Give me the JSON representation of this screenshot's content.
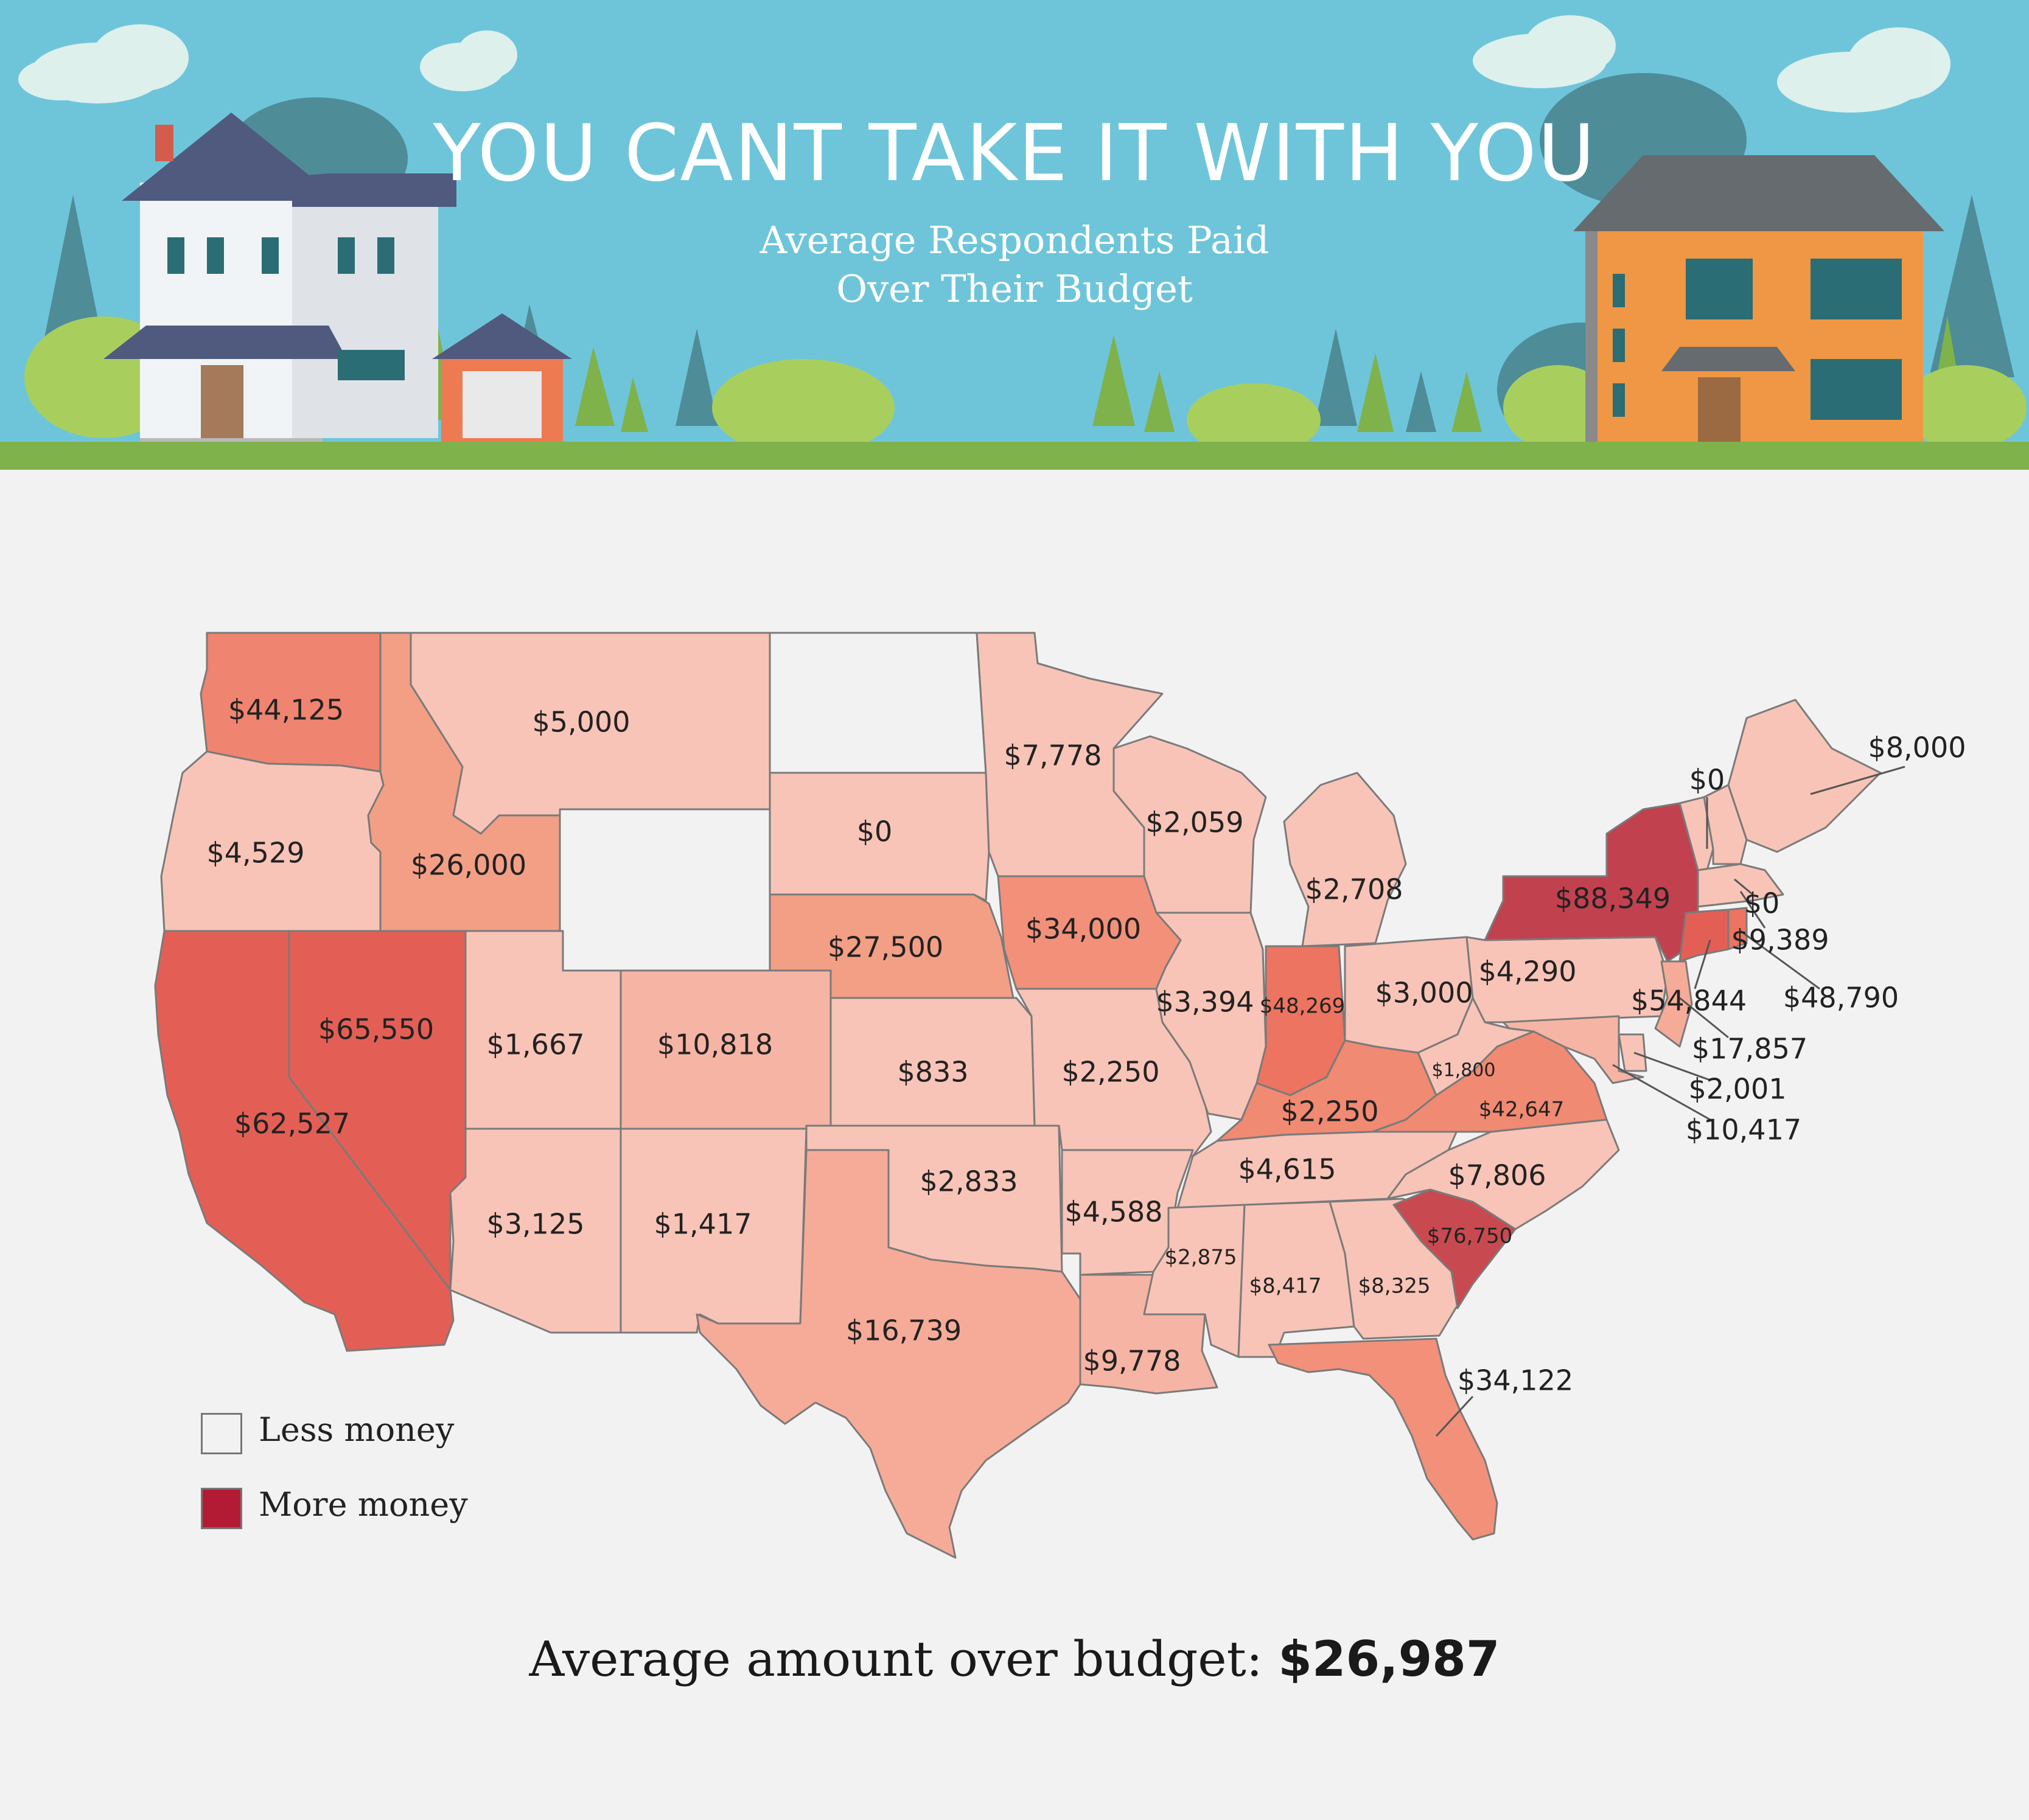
{
  "header": {
    "title": "YOU CANT TAKE IT WITH YOU",
    "subtitle_line1": "Average Respondents Paid",
    "subtitle_line2": "Over Their Budget"
  },
  "legend": {
    "less_label": "Less money",
    "more_label": "More money",
    "less_color": "#f2f2f2",
    "more_color": "#b31b35"
  },
  "footer": {
    "prefix": "Average amount over budget: ",
    "value": "$26,987"
  },
  "map_data": {
    "states": [
      {
        "code": "WA",
        "label": "$44,125",
        "value": 44125,
        "color": "#ef8470"
      },
      {
        "code": "OR",
        "label": "$4,529",
        "value": 4529,
        "color": "#f8c4b7"
      },
      {
        "code": "CA",
        "label": "$62,527",
        "value": 62527,
        "color": "#e35f55"
      },
      {
        "code": "NV",
        "label": "$65,550",
        "value": 65550,
        "color": "#e35f55"
      },
      {
        "code": "ID",
        "label": "$26,000",
        "value": 26000,
        "color": "#f29f86"
      },
      {
        "code": "MT",
        "label": "$5,000",
        "value": 5000,
        "color": "#f8c4b7"
      },
      {
        "code": "WY",
        "label": "",
        "value": null,
        "color": "#f2f2f2"
      },
      {
        "code": "UT",
        "label": "$1,667",
        "value": 1667,
        "color": "#f8c4b7"
      },
      {
        "code": "CO",
        "label": "$10,818",
        "value": 10818,
        "color": "#f6b4a5"
      },
      {
        "code": "AZ",
        "label": "$3,125",
        "value": 3125,
        "color": "#f8c4b7"
      },
      {
        "code": "NM",
        "label": "$1,417",
        "value": 1417,
        "color": "#f8c4b7"
      },
      {
        "code": "ND",
        "label": "",
        "value": null,
        "color": "#f2f2f2"
      },
      {
        "code": "SD",
        "label": "$0",
        "value": 0,
        "color": "#f8c4b7"
      },
      {
        "code": "NE",
        "label": "$27,500",
        "value": 27500,
        "color": "#f29f86"
      },
      {
        "code": "KS",
        "label": "$833",
        "value": 833,
        "color": "#f8c4b7"
      },
      {
        "code": "OK",
        "label": "$2,833",
        "value": 2833,
        "color": "#f8c4b7"
      },
      {
        "code": "TX",
        "label": "$16,739",
        "value": 16739,
        "color": "#f6ab98"
      },
      {
        "code": "MN",
        "label": "$7,778",
        "value": 7778,
        "color": "#f8c4b7"
      },
      {
        "code": "IA",
        "label": "$34,000",
        "value": 34000,
        "color": "#f2907a"
      },
      {
        "code": "MO",
        "label": "$2,250",
        "value": 2250,
        "color": "#f8c4b7"
      },
      {
        "code": "AR",
        "label": "$4,588",
        "value": 4588,
        "color": "#f8c4b7"
      },
      {
        "code": "LA",
        "label": "$9,778",
        "value": 9778,
        "color": "#f6b4a5"
      },
      {
        "code": "WI",
        "label": "$2,059",
        "value": 2059,
        "color": "#f8c4b7"
      },
      {
        "code": "IL",
        "label": "$3,394",
        "value": 3394,
        "color": "#f8c4b7"
      },
      {
        "code": "MI",
        "label": "$2,708",
        "value": 2708,
        "color": "#f8c4b7"
      },
      {
        "code": "IN",
        "label": "$48,269",
        "value": 48269,
        "color": "#ec7460"
      },
      {
        "code": "OH",
        "label": "$3,000",
        "value": 3000,
        "color": "#f8c4b7"
      },
      {
        "code": "KY",
        "label": "$2,250",
        "value": 2250,
        "color": "#f08a72"
      },
      {
        "code": "TN",
        "label": "$4,615",
        "value": 4615,
        "color": "#f8c4b7"
      },
      {
        "code": "MS",
        "label": "$2,875",
        "value": 2875,
        "color": "#f8c4b7"
      },
      {
        "code": "AL",
        "label": "$8,417",
        "value": 8417,
        "color": "#f8c4b7"
      },
      {
        "code": "GA",
        "label": "$8,325",
        "value": 8325,
        "color": "#f8c4b7"
      },
      {
        "code": "FL",
        "label": "$34,122",
        "value": 34122,
        "color": "#f2907a"
      },
      {
        "code": "SC",
        "label": "$76,750",
        "value": 76750,
        "color": "#c84a50"
      },
      {
        "code": "NC",
        "label": "$7,806",
        "value": 7806,
        "color": "#f8c4b7"
      },
      {
        "code": "VA",
        "label": "$42,647",
        "value": 42647,
        "color": "#f08a72"
      },
      {
        "code": "WV",
        "label": "$1,800",
        "value": 1800,
        "color": "#f8c4b7"
      },
      {
        "code": "PA",
        "label": "$4,290",
        "value": 4290,
        "color": "#f8c4b7"
      },
      {
        "code": "NY",
        "label": "$88,349",
        "value": 88349,
        "color": "#c2414f"
      },
      {
        "code": "VT",
        "label": "$0",
        "value": 0,
        "color": "#f8c4b7"
      },
      {
        "code": "NH",
        "label": "$0",
        "value": 0,
        "color": "#f8c4b7"
      },
      {
        "code": "ME",
        "label": "$8,000",
        "value": 8000,
        "color": "#f8c4b7"
      },
      {
        "code": "MA",
        "label": "$9,389",
        "value": 9389,
        "color": "#f8c4b7"
      },
      {
        "code": "CT",
        "label": "$54,844",
        "value": 54844,
        "color": "#e35f55"
      },
      {
        "code": "RI",
        "label": "$48,790",
        "value": 48790,
        "color": "#ec7460"
      },
      {
        "code": "NJ",
        "label": "$17,857",
        "value": 17857,
        "color": "#f6ab98"
      },
      {
        "code": "DE",
        "label": "$2,001",
        "value": 2001,
        "color": "#f8c4b7"
      },
      {
        "code": "MD",
        "label": "$10,417",
        "value": 10417,
        "color": "#f6b4a5"
      }
    ]
  }
}
